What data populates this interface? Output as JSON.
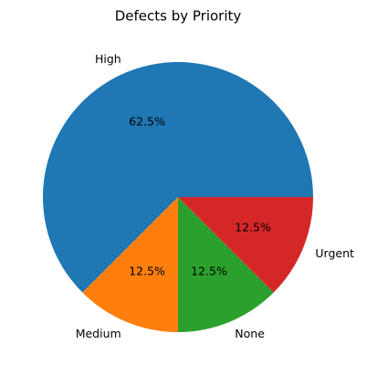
{
  "chart_data": {
    "type": "pie",
    "title": "Defects by Priority",
    "categories": [
      "High",
      "Medium",
      "None",
      "Urgent"
    ],
    "values": [
      62.5,
      12.5,
      12.5,
      12.5
    ],
    "value_labels": [
      "62.5%",
      "12.5%",
      "12.5%",
      "12.5%"
    ],
    "colors": [
      "#1f77b4",
      "#ff7f0e",
      "#2ca02c",
      "#d62728"
    ]
  }
}
